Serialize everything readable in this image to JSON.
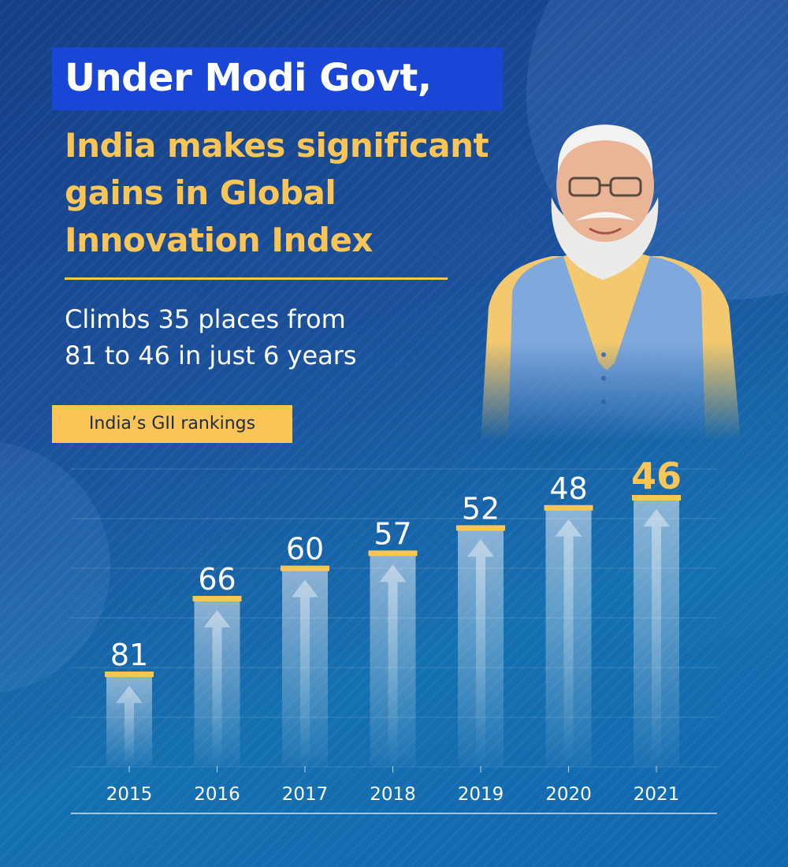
{
  "headline": {
    "line1": "Under Modi Govt,",
    "line2": "India makes significant",
    "line3": "gains in Global",
    "line4": "Innovation Index"
  },
  "subheadline": {
    "line1": "Climbs 35 places from",
    "line2": "81 to 46 in just 6 years"
  },
  "colors": {
    "accent": "#f9c557",
    "title_band": "#1946d6",
    "background": "#1a4f9a"
  },
  "chart_data": {
    "type": "bar",
    "title": "India’s GII rankings",
    "categories": [
      "2015",
      "2016",
      "2017",
      "2018",
      "2019",
      "2020",
      "2021"
    ],
    "values": [
      81,
      66,
      60,
      57,
      52,
      48,
      46
    ],
    "highlight": "2021",
    "grid": true,
    "legend": "none",
    "note": "bars grow taller as rank improves (lower number)"
  }
}
